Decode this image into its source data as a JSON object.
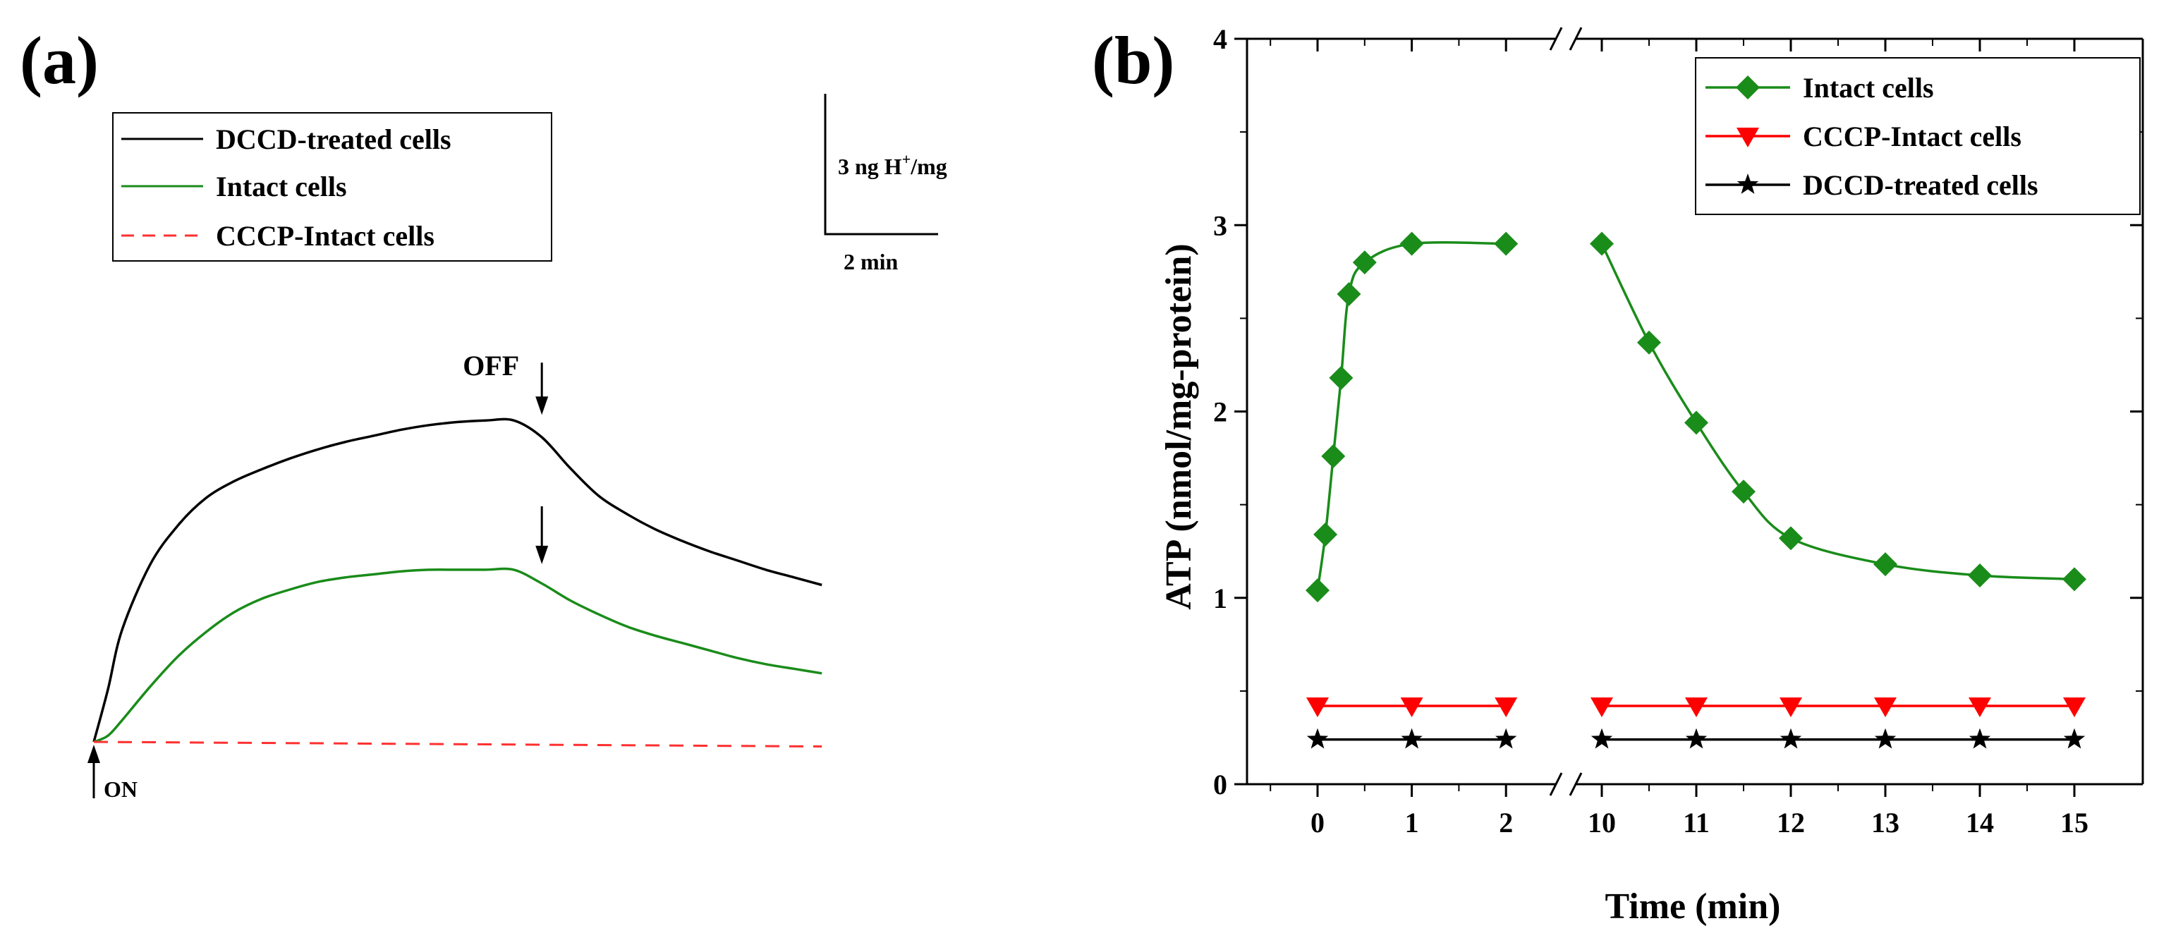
{
  "chart_data": [
    {
      "panel": "(a)",
      "type": "line",
      "title": "",
      "legend_position": "top-left",
      "series": [
        {
          "name": "DCCD-treated cells",
          "color": "#000000",
          "style": "solid",
          "x": [
            0,
            0.5,
            1,
            2,
            3,
            4,
            5,
            6,
            7,
            8,
            9,
            10,
            11,
            12,
            13,
            14,
            15,
            16,
            17,
            18,
            19,
            20,
            21,
            22,
            23,
            24,
            25,
            26
          ],
          "y": [
            0,
            3.4,
            7.3,
            11.6,
            14.2,
            16.0,
            17.1,
            17.9,
            18.6,
            19.2,
            19.7,
            20.1,
            20.5,
            20.8,
            21.0,
            21.1,
            21.1,
            20.0,
            18.0,
            16.2,
            15.0,
            14.0,
            13.2,
            12.5,
            11.9,
            11.3,
            10.8,
            10.3
          ]
        },
        {
          "name": "Intact cells",
          "color": "#1a8c1a",
          "style": "solid",
          "x": [
            0,
            0.5,
            1,
            2,
            3,
            4,
            5,
            6,
            7,
            8,
            9,
            10,
            11,
            12,
            13,
            14,
            15,
            16,
            17,
            18,
            19,
            20,
            21,
            22,
            23,
            24,
            25,
            26
          ],
          "y": [
            0,
            0.4,
            1.4,
            3.6,
            5.6,
            7.2,
            8.5,
            9.4,
            10.0,
            10.5,
            10.8,
            11.0,
            11.2,
            11.3,
            11.3,
            11.3,
            11.3,
            10.4,
            9.3,
            8.4,
            7.6,
            7.0,
            6.5,
            6.0,
            5.5,
            5.1,
            4.8,
            4.5
          ]
        },
        {
          "name": "CCCP-Intact cells",
          "color": "#ff3030",
          "style": "dashed",
          "x": [
            0,
            26
          ],
          "y": [
            0,
            -0.3
          ]
        }
      ],
      "annotations": [
        {
          "text": "ON",
          "x": 0,
          "y": 0
        },
        {
          "text": "OFF",
          "x": 16,
          "y": 21.1
        },
        {
          "text": "",
          "x": 16,
          "y": 11.3
        }
      ],
      "scale_bar": {
        "y_label": "3 ng H",
        "y_label_sup": "+",
        "y_label_suffix": "/mg",
        "x_label": "2 min"
      }
    },
    {
      "panel": "(b)",
      "type": "line",
      "title": "",
      "xlabel": "Time (min)",
      "ylabel": "ATP (nmol/mg-protein)",
      "ylim": [
        0,
        4
      ],
      "yticks": [
        0,
        1,
        2,
        3,
        4
      ],
      "xticks": [
        0,
        1,
        2,
        10,
        11,
        12,
        13,
        14,
        15
      ],
      "x_axis_break": [
        2,
        10
      ],
      "legend_position": "top-right",
      "series": [
        {
          "name": "Intact cells",
          "color": "#1a8c1a",
          "marker": "diamond",
          "x": [
            0,
            0.083,
            0.167,
            0.25,
            0.333,
            0.5,
            1,
            2,
            10,
            10.5,
            11,
            11.5,
            12,
            13,
            14,
            15
          ],
          "y": [
            1.04,
            1.34,
            1.76,
            2.18,
            2.63,
            2.8,
            2.9,
            2.9,
            2.9,
            2.37,
            1.94,
            1.57,
            1.32,
            1.18,
            1.12,
            1.1
          ]
        },
        {
          "name": "CCCP-Intact cells",
          "color": "#ff0000",
          "marker": "triangle-down",
          "x": [
            0,
            1,
            2,
            10,
            11,
            12,
            13,
            14,
            15
          ],
          "y": [
            0.42,
            0.42,
            0.42,
            0.42,
            0.42,
            0.42,
            0.42,
            0.42,
            0.42
          ]
        },
        {
          "name": "DCCD-treated cells",
          "color": "#000000",
          "marker": "star",
          "x": [
            0,
            1,
            2,
            10,
            11,
            12,
            13,
            14,
            15
          ],
          "y": [
            0.24,
            0.24,
            0.24,
            0.24,
            0.24,
            0.24,
            0.24,
            0.24,
            0.24
          ]
        }
      ]
    }
  ]
}
